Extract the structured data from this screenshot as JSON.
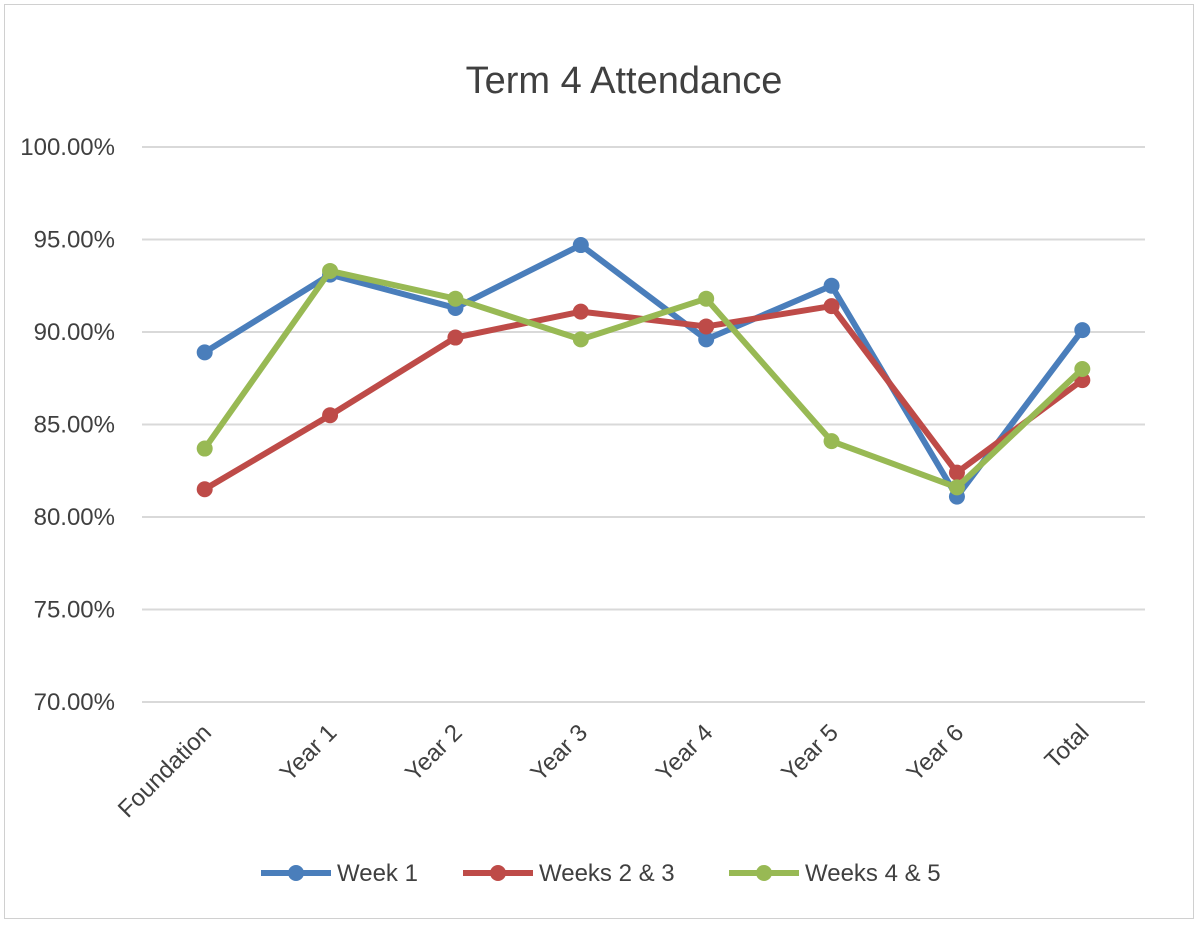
{
  "chart_data": {
    "type": "line",
    "title": "Term 4 Attendance",
    "categories": [
      "Foundation",
      "Year 1",
      "Year 2",
      "Year 3",
      "Year 4",
      "Year 5",
      "Year 6",
      "Total"
    ],
    "ylim": [
      70,
      100
    ],
    "ytick_values": [
      70,
      75,
      80,
      85,
      90,
      95,
      100
    ],
    "ytick_labels": [
      "70.00%",
      "75.00%",
      "80.00%",
      "85.00%",
      "90.00%",
      "95.00%",
      "100.00%"
    ],
    "grid": true,
    "legend_position": "bottom",
    "series": [
      {
        "name": "Week 1",
        "color": "#4a7ebb",
        "values": [
          88.9,
          93.1,
          91.3,
          94.7,
          89.6,
          92.5,
          81.1,
          90.1
        ]
      },
      {
        "name": "Weeks 2 & 3",
        "color": "#be4b48",
        "values": [
          81.5,
          85.5,
          89.7,
          91.1,
          90.3,
          91.4,
          82.4,
          87.4
        ]
      },
      {
        "name": "Weeks 4 & 5",
        "color": "#98b954",
        "values": [
          83.7,
          93.3,
          91.8,
          89.6,
          91.8,
          84.1,
          81.6,
          88.0
        ]
      }
    ]
  }
}
